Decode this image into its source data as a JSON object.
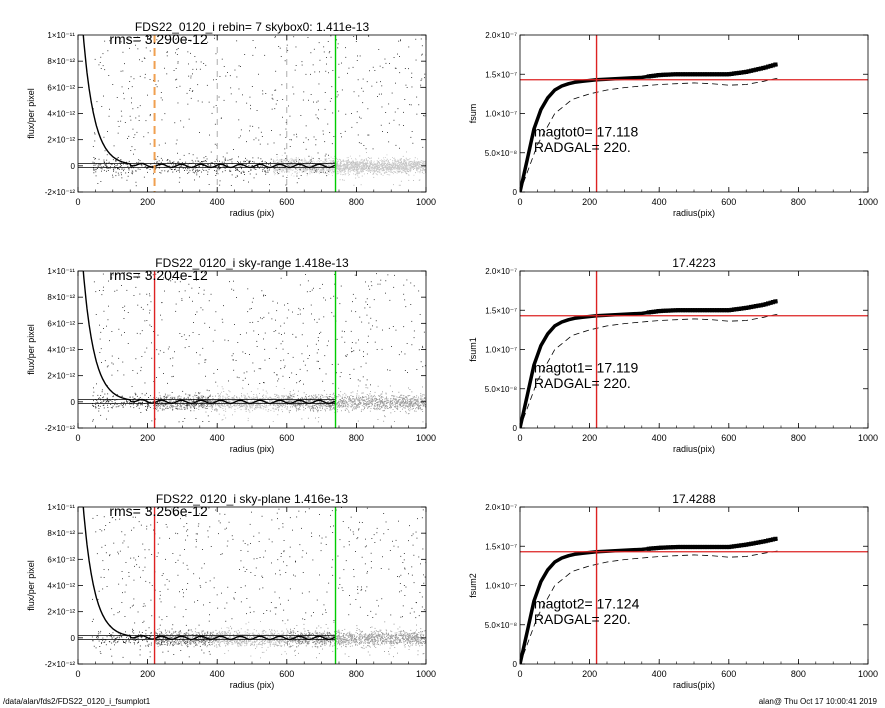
{
  "footer": {
    "path": "/data/alan/fds2/FDS22_0120_i_fsumplot1",
    "stamp": "alan@  Thu Oct 17 10:00:41 2019"
  },
  "chart_data": [
    {
      "id": "p1",
      "type": "scatter",
      "title": "FDS22_0120_i rebin= 7    skybox0:  1.411e-13",
      "xlabel": "radius (pix)",
      "ylabel": "flux/per pixel",
      "xlim": [
        0,
        1000
      ],
      "ylim": [
        -2e-12,
        1e-11
      ],
      "xticks": [
        {
          "v": 0,
          "t": "0"
        },
        {
          "v": 200,
          "t": "200"
        },
        {
          "v": 400,
          "t": "400"
        },
        {
          "v": 600,
          "t": "600"
        },
        {
          "v": 800,
          "t": "800"
        },
        {
          "v": 1000,
          "t": "1000"
        }
      ],
      "yticks": [
        {
          "v": -2e-12,
          "t": "-2×10⁻¹²"
        },
        {
          "v": 0,
          "t": "0"
        },
        {
          "v": 2e-12,
          "t": "2×10⁻¹²"
        },
        {
          "v": 4e-12,
          "t": "4×10⁻¹²"
        },
        {
          "v": 6e-12,
          "t": "6×10⁻¹²"
        },
        {
          "v": 8e-12,
          "t": "8×10⁻¹²"
        },
        {
          "v": 1e-11,
          "t": "1×10⁻¹¹"
        }
      ],
      "annotations": [
        {
          "text": "rms= 3.290e-12",
          "x": 90,
          "y": 9.3e-12
        }
      ],
      "vlines": [
        {
          "x": 220,
          "color": "#f0a050",
          "dash": true
        },
        {
          "x": 400,
          "color": "#999999",
          "dash": true
        },
        {
          "x": 600,
          "color": "#999999",
          "dash": true
        },
        {
          "x": 740,
          "color": "#00cc00"
        }
      ],
      "hlines": [],
      "sky_bands": "light"
    },
    {
      "id": "p2",
      "type": "line",
      "title": "",
      "xlabel": "radius(pix)",
      "ylabel": "fsum",
      "xlim": [
        0,
        1000
      ],
      "ylim": [
        0,
        2e-07
      ],
      "xticks": [
        {
          "v": 0,
          "t": "0"
        },
        {
          "v": 200,
          "t": "200"
        },
        {
          "v": 400,
          "t": "400"
        },
        {
          "v": 600,
          "t": "600"
        },
        {
          "v": 800,
          "t": "800"
        },
        {
          "v": 1000,
          "t": "1000"
        }
      ],
      "yticks": [
        {
          "v": 0,
          "t": "0"
        },
        {
          "v": 5e-08,
          "t": "5.0×10⁻⁸"
        },
        {
          "v": 1e-07,
          "t": "1.0×10⁻⁷"
        },
        {
          "v": 1.5e-07,
          "t": "1.5×10⁻⁷"
        },
        {
          "v": 2e-07,
          "t": "2.0×10⁻⁷"
        }
      ],
      "annotations": [
        {
          "text": "magtot0=  17.118",
          "x": 40,
          "y": 7.1e-08
        },
        {
          "text": "RADGAL=    220.",
          "x": 40,
          "y": 5.1e-08
        }
      ],
      "vlines": [
        {
          "x": 220,
          "color": "#dd2222"
        }
      ],
      "hlines": [
        {
          "y": 1.43e-07,
          "color": "#dd2222"
        }
      ],
      "curve_x": [
        0,
        20,
        40,
        60,
        80,
        100,
        120,
        140,
        160,
        180,
        200,
        220,
        260,
        300,
        350,
        400,
        450,
        500,
        550,
        600,
        650,
        700,
        740
      ],
      "curve_y": [
        0,
        4e-08,
        8e-08,
        1.05e-07,
        1.2e-07,
        1.3e-07,
        1.35e-07,
        1.38e-07,
        1.4e-07,
        1.41e-07,
        1.42e-07,
        1.43e-07,
        1.44e-07,
        1.45e-07,
        1.46e-07,
        1.49e-07,
        1.5e-07,
        1.5e-07,
        1.5e-07,
        1.5e-07,
        1.53e-07,
        1.58e-07,
        1.63e-07
      ],
      "dash_x": [
        0,
        50,
        100,
        150,
        200,
        250,
        300,
        350,
        400,
        450,
        500,
        550,
        600,
        650,
        700,
        740
      ],
      "dash_y": [
        0,
        6e-08,
        1e-07,
        1.18e-07,
        1.25e-07,
        1.3e-07,
        1.33e-07,
        1.35e-07,
        1.37e-07,
        1.38e-07,
        1.39e-07,
        1.38e-07,
        1.36e-07,
        1.37e-07,
        1.41e-07,
        1.45e-07
      ]
    },
    {
      "id": "p3",
      "type": "scatter",
      "title": "FDS22_0120_i sky-range  1.418e-13",
      "xlabel": "radius (pix)",
      "ylabel": "flux/per pixel",
      "xlim": [
        0,
        1000
      ],
      "ylim": [
        -2e-12,
        1e-11
      ],
      "xticks": [
        {
          "v": 0,
          "t": "0"
        },
        {
          "v": 200,
          "t": "200"
        },
        {
          "v": 400,
          "t": "400"
        },
        {
          "v": 600,
          "t": "600"
        },
        {
          "v": 800,
          "t": "800"
        },
        {
          "v": 1000,
          "t": "1000"
        }
      ],
      "yticks": [
        {
          "v": -2e-12,
          "t": "-2×10⁻¹²"
        },
        {
          "v": 0,
          "t": "0"
        },
        {
          "v": 2e-12,
          "t": "2×10⁻¹²"
        },
        {
          "v": 4e-12,
          "t": "4×10⁻¹²"
        },
        {
          "v": 6e-12,
          "t": "6×10⁻¹²"
        },
        {
          "v": 8e-12,
          "t": "8×10⁻¹²"
        },
        {
          "v": 1e-11,
          "t": "1×10⁻¹¹"
        }
      ],
      "annotations": [
        {
          "text": "rms= 3.204e-12",
          "x": 90,
          "y": 9.3e-12
        }
      ],
      "vlines": [
        {
          "x": 220,
          "color": "#dd2222"
        },
        {
          "x": 740,
          "color": "#00cc00"
        }
      ],
      "hlines": [],
      "sky_bands": "gray"
    },
    {
      "id": "p4",
      "type": "line",
      "title": "17.4223",
      "xlabel": "radius(pix)",
      "ylabel": "fsum1",
      "xlim": [
        0,
        1000
      ],
      "ylim": [
        0,
        2e-07
      ],
      "xticks": [
        {
          "v": 0,
          "t": "0"
        },
        {
          "v": 200,
          "t": "200"
        },
        {
          "v": 400,
          "t": "400"
        },
        {
          "v": 600,
          "t": "600"
        },
        {
          "v": 800,
          "t": "800"
        },
        {
          "v": 1000,
          "t": "1000"
        }
      ],
      "yticks": [
        {
          "v": 0,
          "t": "0"
        },
        {
          "v": 5e-08,
          "t": "5.0×10⁻⁸"
        },
        {
          "v": 1e-07,
          "t": "1.0×10⁻⁷"
        },
        {
          "v": 1.5e-07,
          "t": "1.5×10⁻⁷"
        },
        {
          "v": 2e-07,
          "t": "2.0×10⁻⁷"
        }
      ],
      "annotations": [
        {
          "text": "magtot1=  17.119",
          "x": 40,
          "y": 7.1e-08
        },
        {
          "text": "RADGAL=    220.",
          "x": 40,
          "y": 5.1e-08
        }
      ],
      "vlines": [
        {
          "x": 220,
          "color": "#dd2222"
        }
      ],
      "hlines": [
        {
          "y": 1.43e-07,
          "color": "#dd2222"
        }
      ],
      "curve_x": [
        0,
        20,
        40,
        60,
        80,
        100,
        120,
        140,
        160,
        180,
        200,
        220,
        260,
        300,
        350,
        400,
        450,
        500,
        550,
        600,
        650,
        700,
        740
      ],
      "curve_y": [
        0,
        4e-08,
        8e-08,
        1.05e-07,
        1.2e-07,
        1.3e-07,
        1.35e-07,
        1.38e-07,
        1.4e-07,
        1.41e-07,
        1.42e-07,
        1.43e-07,
        1.44e-07,
        1.45e-07,
        1.46e-07,
        1.49e-07,
        1.5e-07,
        1.5e-07,
        1.5e-07,
        1.5e-07,
        1.53e-07,
        1.57e-07,
        1.62e-07
      ],
      "dash_x": [
        0,
        50,
        100,
        150,
        200,
        250,
        300,
        350,
        400,
        450,
        500,
        550,
        600,
        650,
        700,
        740
      ],
      "dash_y": [
        0,
        6e-08,
        1e-07,
        1.18e-07,
        1.25e-07,
        1.3e-07,
        1.33e-07,
        1.35e-07,
        1.37e-07,
        1.38e-07,
        1.39e-07,
        1.38e-07,
        1.36e-07,
        1.37e-07,
        1.41e-07,
        1.45e-07
      ]
    },
    {
      "id": "p5",
      "type": "scatter",
      "title": "FDS22_0120_i sky-plane  1.416e-13",
      "xlabel": "radius (pix)",
      "ylabel": "flux/per pixel",
      "xlim": [
        0,
        1000
      ],
      "ylim": [
        -2e-12,
        1e-11
      ],
      "xticks": [
        {
          "v": 0,
          "t": "0"
        },
        {
          "v": 200,
          "t": "200"
        },
        {
          "v": 400,
          "t": "400"
        },
        {
          "v": 600,
          "t": "600"
        },
        {
          "v": 800,
          "t": "800"
        },
        {
          "v": 1000,
          "t": "1000"
        }
      ],
      "yticks": [
        {
          "v": -2e-12,
          "t": "-2×10⁻¹²"
        },
        {
          "v": 0,
          "t": "0"
        },
        {
          "v": 2e-12,
          "t": "2×10⁻¹²"
        },
        {
          "v": 4e-12,
          "t": "4×10⁻¹²"
        },
        {
          "v": 6e-12,
          "t": "6×10⁻¹²"
        },
        {
          "v": 8e-12,
          "t": "8×10⁻¹²"
        },
        {
          "v": 1e-11,
          "t": "1×10⁻¹¹"
        }
      ],
      "annotations": [
        {
          "text": "rms= 3.256e-12",
          "x": 90,
          "y": 9.3e-12
        }
      ],
      "vlines": [
        {
          "x": 220,
          "color": "#dd2222"
        },
        {
          "x": 740,
          "color": "#00cc00"
        }
      ],
      "hlines": [],
      "sky_bands": "gray"
    },
    {
      "id": "p6",
      "type": "line",
      "title": "17.4288",
      "xlabel": "radius(pix)",
      "ylabel": "fsum2",
      "xlim": [
        0,
        1000
      ],
      "ylim": [
        0,
        2e-07
      ],
      "xticks": [
        {
          "v": 0,
          "t": "0"
        },
        {
          "v": 200,
          "t": "200"
        },
        {
          "v": 400,
          "t": "400"
        },
        {
          "v": 600,
          "t": "600"
        },
        {
          "v": 800,
          "t": "800"
        },
        {
          "v": 1000,
          "t": "1000"
        }
      ],
      "yticks": [
        {
          "v": 0,
          "t": "0"
        },
        {
          "v": 5e-08,
          "t": "5.0×10⁻⁸"
        },
        {
          "v": 1e-07,
          "t": "1.0×10⁻⁷"
        },
        {
          "v": 1.5e-07,
          "t": "1.5×10⁻⁷"
        },
        {
          "v": 2e-07,
          "t": "2.0×10⁻⁷"
        }
      ],
      "annotations": [
        {
          "text": "magtot2=  17.124",
          "x": 40,
          "y": 7.1e-08
        },
        {
          "text": "RADGAL=    220.",
          "x": 40,
          "y": 5.1e-08
        }
      ],
      "vlines": [
        {
          "x": 220,
          "color": "#dd2222"
        }
      ],
      "hlines": [
        {
          "y": 1.43e-07,
          "color": "#dd2222"
        }
      ],
      "curve_x": [
        0,
        20,
        40,
        60,
        80,
        100,
        120,
        140,
        160,
        180,
        200,
        220,
        260,
        300,
        350,
        400,
        450,
        500,
        550,
        600,
        650,
        700,
        740
      ],
      "curve_y": [
        0,
        4e-08,
        8e-08,
        1.05e-07,
        1.2e-07,
        1.3e-07,
        1.35e-07,
        1.38e-07,
        1.4e-07,
        1.41e-07,
        1.42e-07,
        1.43e-07,
        1.44e-07,
        1.45e-07,
        1.46e-07,
        1.48e-07,
        1.49e-07,
        1.49e-07,
        1.49e-07,
        1.49e-07,
        1.52e-07,
        1.56e-07,
        1.6e-07
      ],
      "dash_x": [
        0,
        50,
        100,
        150,
        200,
        250,
        300,
        350,
        400,
        450,
        500,
        550,
        600,
        650,
        700,
        740
      ],
      "dash_y": [
        0,
        6e-08,
        1e-07,
        1.18e-07,
        1.25e-07,
        1.3e-07,
        1.33e-07,
        1.35e-07,
        1.37e-07,
        1.38e-07,
        1.39e-07,
        1.38e-07,
        1.36e-07,
        1.37e-07,
        1.41e-07,
        1.44e-07
      ]
    }
  ]
}
